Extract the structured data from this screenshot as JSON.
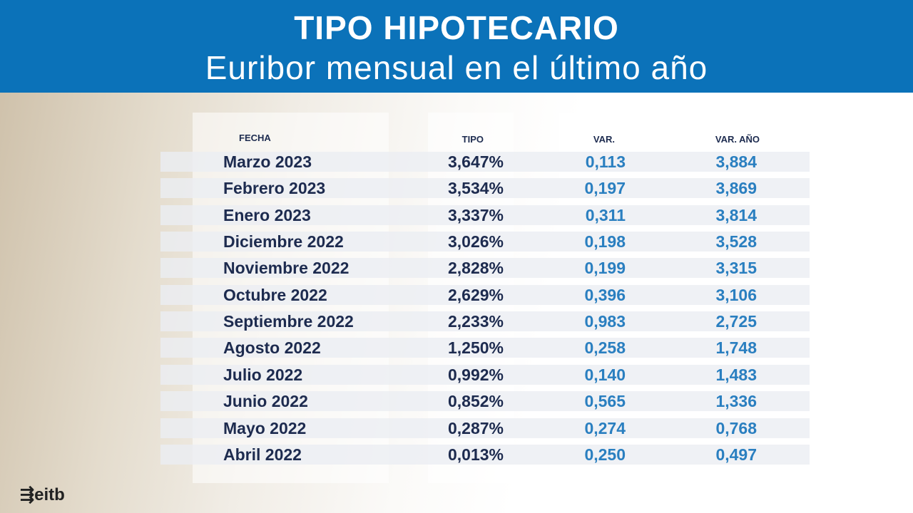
{
  "header": {
    "title": "TIPO HIPOTECARIO",
    "subtitle": "Euribor mensual en el último año"
  },
  "table": {
    "columns": [
      "FECHA",
      "TIPO",
      "VAR.",
      "VAR. AÑO"
    ],
    "rows": [
      [
        "Marzo 2023",
        "3,647%",
        "0,113",
        "3,884"
      ],
      [
        "Febrero 2023",
        "3,534%",
        "0,197",
        "3,869"
      ],
      [
        "Enero 2023",
        "3,337%",
        "0,311",
        "3,814"
      ],
      [
        "Diciembre 2022",
        "3,026%",
        "0,198",
        "3,528"
      ],
      [
        "Noviembre 2022",
        "2,828%",
        "0,199",
        "3,315"
      ],
      [
        "Octubre 2022",
        "2,629%",
        "0,396",
        "3,106"
      ],
      [
        "Septiembre 2022",
        "2,233%",
        "0,983",
        "2,725"
      ],
      [
        "Agosto 2022",
        "1,250%",
        "0,258",
        "1,748"
      ],
      [
        "Julio 2022",
        "0,992%",
        "0,140",
        "1,483"
      ],
      [
        "Junio 2022",
        "0,852%",
        "0,565",
        "1,336"
      ],
      [
        "Mayo 2022",
        "0,287%",
        "0,274",
        "0,768"
      ],
      [
        "Abril 2022",
        "0,013%",
        "0,250",
        "0,497"
      ]
    ]
  },
  "logo": "eitb"
}
